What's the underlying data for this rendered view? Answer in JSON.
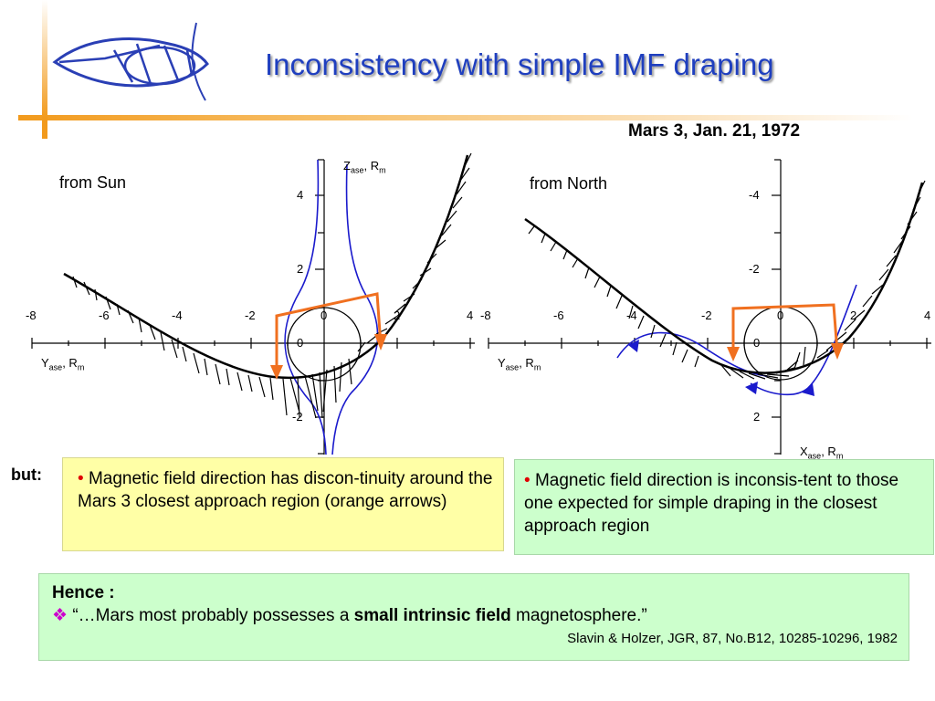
{
  "title": "Inconsistency with simple IMF draping",
  "subtitle": "Mars 3, Jan. 21, 1972",
  "left_panel": {
    "label": "from Sun",
    "x_ticks": [
      "-8",
      "-6",
      "-4",
      "-2",
      "0",
      "2",
      "4"
    ],
    "y_ticks": [
      "4",
      "2",
      "0",
      "-2"
    ],
    "x_axis": {
      "name": "Y",
      "sub": "ase",
      "sep": ", R",
      "unit": "m"
    },
    "y_axis": {
      "name": "Z",
      "sub": "ase",
      "sep": ", R",
      "unit": "m"
    }
  },
  "right_panel": {
    "label": "from North",
    "x_ticks": [
      "-8",
      "-6",
      "-4",
      "-2",
      "0",
      "2",
      "4"
    ],
    "y_ticks": [
      "-4",
      "-2",
      "0",
      "2"
    ],
    "x_axis": {
      "name": "Y",
      "sub": "ase",
      "sep": ", R",
      "unit": "m"
    },
    "y_axis": {
      "name": "X",
      "sub": "ase",
      "sep": ", R",
      "unit": "m"
    }
  },
  "colors": {
    "title": "#1f3fbf",
    "field_lines": "#1a1acc",
    "arrows": "#f07020",
    "box_yellow": "#ffffa6",
    "box_green": "#ccffcc"
  },
  "but_label": "but:",
  "bullet_char": "•",
  "box1_text": "Magnetic field direction has  discon-tinuity around the Mars 3 closest approach region (orange arrows)",
  "box2_text": "Magnetic field direction is inconsis-tent to those one expected for simple draping in the closest approach region",
  "conclusion": {
    "heading": "Hence :",
    "bullet": "❖",
    "quote_start": "“…Mars most probably possesses a ",
    "quote_bold": "small intrinsic field",
    "quote_end": " magnetosphere.”",
    "citation": "Slavin & Holzer, JGR, 87, No.B12, 10285-10296, 1982"
  },
  "logo_icon": "fish-logo-icon"
}
